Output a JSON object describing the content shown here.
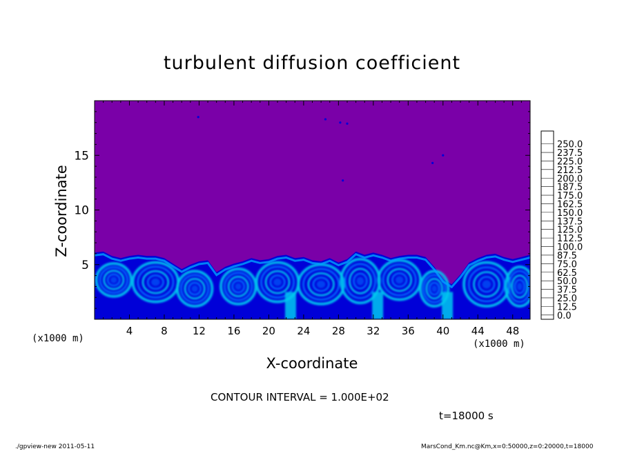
{
  "title": "turbulent diffusion coefficient",
  "xlabel": "X-coordinate",
  "ylabel": "Z-coordinate",
  "x_unit_left": "(x1000 m)",
  "x_unit_right": "(x1000 m)",
  "contour_interval": "CONTOUR INTERVAL = 1.000E+02",
  "time_label": "t=18000 s",
  "footer_left": "./gpview-new   2011-05-11",
  "footer_right": "MarsCond_Km.nc@Km,x=0:50000,z=0:20000,t=18000",
  "colors": {
    "background_field": "#7a00a8",
    "low_turbulence": "#0000c0",
    "mid_turbulence": "#2f8cff",
    "high_turbulence": "#3fe0ff"
  },
  "chart_data": {
    "type": "heatmap",
    "title": "turbulent diffusion coefficient",
    "xlabel": "X-coordinate",
    "ylabel": "Z-coordinate",
    "x_unit": "x1000 m",
    "z_unit": "x1000 m",
    "xlim": [
      0,
      50
    ],
    "ylim": [
      0,
      20
    ],
    "x_ticks": [
      4,
      8,
      12,
      16,
      20,
      24,
      28,
      32,
      36,
      40,
      44,
      48
    ],
    "y_ticks": [
      5,
      10,
      15
    ],
    "colorbar": {
      "levels": [
        "0.0",
        "12.5",
        "25.0",
        "37.5",
        "50.0",
        "62.5",
        "75.0",
        "87.5",
        "100.0",
        "112.5",
        "125.0",
        "137.5",
        "150.0",
        "162.5",
        "175.0",
        "187.5",
        "200.0",
        "212.5",
        "225.0",
        "237.5",
        "250.0"
      ],
      "colors": [
        "#7a00a8",
        "#1800a8",
        "#0000d8",
        "#0040f0",
        "#0070ff",
        "#00a0ff",
        "#00c8f0",
        "#00e8d8",
        "#00e8a0",
        "#00e070",
        "#00d040",
        "#10c800",
        "#60d800",
        "#a0e000",
        "#d8e800",
        "#f8e000",
        "#f8b000",
        "#f87800",
        "#f84800",
        "#f81830",
        "#f87090",
        "#f8a0b0"
      ]
    },
    "mixed_layer_top_z": 5.8,
    "boundary_profile": {
      "x": [
        0,
        1,
        2,
        3,
        4,
        5,
        6,
        7,
        8,
        9,
        10,
        11,
        12,
        13,
        14,
        15,
        16,
        17,
        18,
        19,
        20,
        21,
        22,
        23,
        24,
        25,
        26,
        27,
        28,
        29,
        30,
        31,
        32,
        33,
        34,
        35,
        36,
        37,
        38,
        39,
        40,
        41,
        42,
        43,
        44,
        45,
        46,
        47,
        48,
        49,
        50
      ],
      "z": [
        6.1,
        6.2,
        5.8,
        5.6,
        5.8,
        5.9,
        5.8,
        5.8,
        5.6,
        5.1,
        4.6,
        5.0,
        5.3,
        5.4,
        4.3,
        4.8,
        5.1,
        5.3,
        5.6,
        5.4,
        5.5,
        5.8,
        5.9,
        5.6,
        5.7,
        5.4,
        5.3,
        5.6,
        5.2,
        5.5,
        6.2,
        5.9,
        6.1,
        5.9,
        5.6,
        5.8,
        5.9,
        5.9,
        5.7,
        4.8,
        3.7,
        3.2,
        4.1,
        5.2,
        5.6,
        5.9,
        6.0,
        5.7,
        5.5,
        5.7,
        5.9
      ]
    },
    "z_grid": [
      0,
      2.5,
      5.0,
      7.5,
      10.0,
      12.5,
      15.0,
      17.5,
      20.0
    ],
    "x_grid": [
      0,
      5,
      10,
      15,
      20,
      25,
      30,
      35,
      40,
      45,
      50
    ],
    "values": [
      [
        0,
        0,
        0,
        0,
        0,
        0,
        0,
        0,
        0,
        0,
        0
      ],
      [
        0,
        0,
        0,
        0,
        0,
        0,
        0,
        0,
        0,
        0,
        0
      ],
      [
        0,
        0,
        0,
        0,
        0,
        0,
        0,
        0,
        0,
        0,
        0
      ],
      [
        0,
        0,
        0,
        0,
        0,
        0,
        0,
        0,
        0,
        0,
        0
      ],
      [
        0,
        0,
        0,
        0,
        0,
        0,
        0,
        0,
        0,
        0,
        0
      ],
      [
        0,
        0,
        0,
        0,
        0,
        0,
        0,
        0,
        0,
        0,
        0
      ],
      [
        40,
        40,
        30,
        40,
        40,
        45,
        45,
        45,
        45,
        40,
        45
      ],
      [
        55,
        60,
        50,
        50,
        55,
        65,
        70,
        60,
        55,
        60,
        60
      ],
      [
        45,
        45,
        40,
        40,
        45,
        50,
        75,
        50,
        45,
        40,
        45
      ]
    ]
  }
}
